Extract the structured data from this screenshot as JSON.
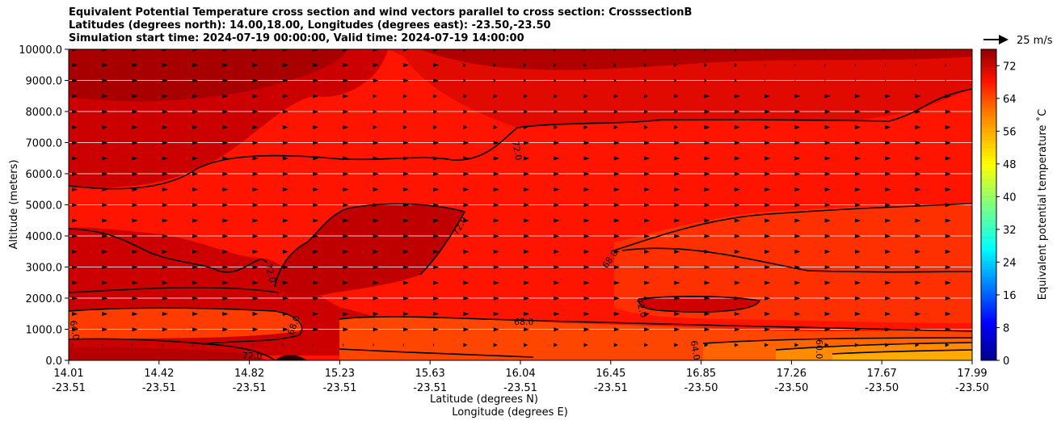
{
  "chart_data": {
    "type": "heatmap",
    "title_lines": [
      "Equivalent Potential Temperature cross section and wind vectors parallel to cross section: CrosssectionB",
      "Latitudes (degrees north): 14.00,18.00, Longitudes (degrees east): -23.50,-23.50",
      "Simulation start time: 2024-07-19 00:00:00, Valid time: 2024-07-19 14:00:00"
    ],
    "ylabel": "Altitude (meters)",
    "xlabel_lines": [
      "Latitude (degrees N)",
      "Longitude (degrees E)"
    ],
    "ylim": [
      0,
      10000
    ],
    "y_ticks": [
      "0.0",
      "1000.0",
      "2000.0",
      "3000.0",
      "4000.0",
      "5000.0",
      "6000.0",
      "7000.0",
      "8000.0",
      "9000.0",
      "10000.0"
    ],
    "x_ticks": [
      {
        "lat": "14.01",
        "lon": "-23.51"
      },
      {
        "lat": "14.42",
        "lon": "-23.51"
      },
      {
        "lat": "14.82",
        "lon": "-23.51"
      },
      {
        "lat": "15.23",
        "lon": "-23.51"
      },
      {
        "lat": "15.63",
        "lon": "-23.51"
      },
      {
        "lat": "16.04",
        "lon": "-23.51"
      },
      {
        "lat": "16.45",
        "lon": "-23.51"
      },
      {
        "lat": "16.85",
        "lon": "-23.50"
      },
      {
        "lat": "17.26",
        "lon": "-23.50"
      },
      {
        "lat": "17.67",
        "lon": "-23.50"
      },
      {
        "lat": "17.99",
        "lon": "-23.50"
      }
    ],
    "colorbar": {
      "label": "Equivalent potential temperature ˚C",
      "range": [
        0,
        76
      ],
      "step": 2,
      "ticks": [
        "0",
        "8",
        "16",
        "24",
        "32",
        "40",
        "48",
        "56",
        "64",
        "72"
      ]
    },
    "contour_levels": [
      60.0,
      64.0,
      68.0,
      72.0
    ],
    "contour_labels": [
      "72.0",
      "72.0",
      "72.0",
      "72.0",
      "72.0",
      "68.0",
      "68.0",
      "68.0",
      "64.0",
      "64.0",
      "60.0"
    ],
    "wind_reference": {
      "label": "25 m/s",
      "speed_ms": 25
    },
    "grid": "horizontal"
  },
  "colors": {
    "background_field": "#ff1400",
    "warm_layer": "#cc0000",
    "warmest_layer": "#a60000",
    "mid_layer": "#ff3000",
    "cool_layer": "#ff5000",
    "contour": "#000000"
  }
}
